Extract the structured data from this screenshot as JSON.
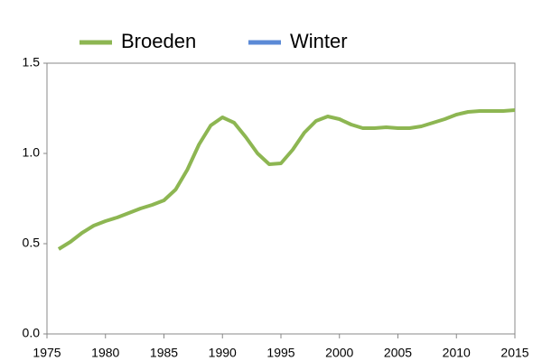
{
  "chart_data": {
    "type": "line",
    "x": [
      1976,
      1977,
      1978,
      1979,
      1980,
      1981,
      1982,
      1983,
      1984,
      1985,
      1986,
      1987,
      1988,
      1989,
      1990,
      1991,
      1992,
      1993,
      1994,
      1995,
      1996,
      1997,
      1998,
      1999,
      2000,
      2001,
      2002,
      2003,
      2004,
      2005,
      2006,
      2007,
      2008,
      2009,
      2010,
      2011,
      2012,
      2013,
      2014,
      2015
    ],
    "series": [
      {
        "name": "Broeden",
        "color": "#8db652",
        "values": [
          0.47,
          0.51,
          0.56,
          0.6,
          0.625,
          0.645,
          0.67,
          0.695,
          0.715,
          0.74,
          0.8,
          0.91,
          1.05,
          1.155,
          1.2,
          1.17,
          1.09,
          1.0,
          0.94,
          0.945,
          1.02,
          1.115,
          1.18,
          1.205,
          1.19,
          1.16,
          1.14,
          1.14,
          1.145,
          1.14,
          1.14,
          1.15,
          1.17,
          1.19,
          1.215,
          1.23,
          1.235,
          1.235,
          1.235,
          1.24
        ]
      },
      {
        "name": "Winter",
        "color": "#5b8ad6",
        "values": [
          null,
          null,
          null,
          null,
          null,
          null,
          null,
          null,
          null,
          null,
          null,
          null,
          null,
          null,
          null,
          null,
          null,
          null,
          null,
          null,
          null,
          null,
          null,
          null,
          null,
          null,
          null,
          null,
          null,
          null,
          null,
          null,
          null,
          null,
          null,
          null,
          null,
          null,
          null,
          null
        ]
      }
    ],
    "xlim": [
      1975,
      2015
    ],
    "xticks": [
      1975,
      1980,
      1985,
      1990,
      1995,
      2000,
      2005,
      2010,
      2015
    ],
    "ylim": [
      0,
      1.5
    ],
    "yticks": [
      {
        "value": 0,
        "label": "0.0"
      },
      0.5,
      {
        "value": 1,
        "label": "1.0"
      },
      1.5
    ],
    "legend": "top"
  }
}
